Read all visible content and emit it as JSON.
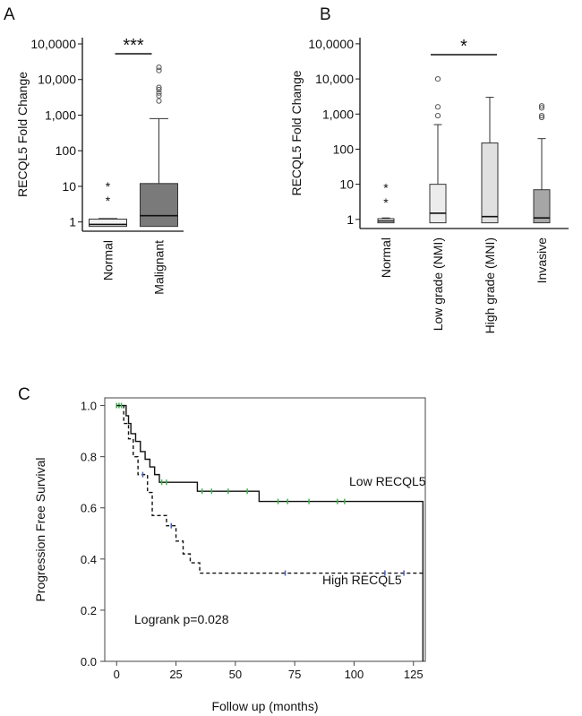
{
  "chart_data": [
    {
      "panel": "A",
      "type": "box",
      "ylabel": "RECQL5 Fold Change",
      "yscale": "log",
      "yticks": [
        {
          "value": 1,
          "label": "1"
        },
        {
          "value": 10,
          "label": "10"
        },
        {
          "value": 100,
          "label": "100"
        },
        {
          "value": 1000,
          "label": "1,000"
        },
        {
          "value": 10000,
          "label": "10,000"
        },
        {
          "value": 100000,
          "label": "10,0000"
        }
      ],
      "ylim": [
        0.55,
        150000
      ],
      "categories": [
        "Normal",
        "Malignant"
      ],
      "boxes": [
        {
          "category": "Normal",
          "fill": "#f2f2f2",
          "whisker_low": 0.75,
          "q1": 0.75,
          "median": 0.85,
          "q3": 1.2,
          "whisker_high": 1.25,
          "outliers": [],
          "extremes": [
            4,
            10
          ]
        },
        {
          "category": "Malignant",
          "fill": "#7a7a7a",
          "whisker_low": 0.75,
          "q1": 0.75,
          "median": 1.5,
          "q3": 12,
          "whisker_high": 800,
          "outliers": [
            2500,
            3500,
            4200,
            5200,
            6000,
            18000,
            22000
          ],
          "extremes": []
        }
      ],
      "significance": {
        "label": "***",
        "from": "Normal",
        "to": "Malignant"
      }
    },
    {
      "panel": "B",
      "type": "box",
      "ylabel": "RECQL5 Fold Change",
      "yscale": "log",
      "yticks": [
        {
          "value": 1,
          "label": "1"
        },
        {
          "value": 10,
          "label": "10"
        },
        {
          "value": 100,
          "label": "100"
        },
        {
          "value": 1000,
          "label": "1,000"
        },
        {
          "value": 10000,
          "label": "10,000"
        },
        {
          "value": 100000,
          "label": "10,0000"
        }
      ],
      "ylim": [
        0.55,
        150000
      ],
      "categories": [
        "Normal",
        "Low grade (NMI)",
        "High grade (MNI)",
        "Invasive"
      ],
      "boxes": [
        {
          "category": "Normal",
          "fill": "#f2f2f2",
          "whisker_low": 0.8,
          "q1": 0.8,
          "median": 0.9,
          "q3": 1.05,
          "whisker_high": 1.1,
          "outliers": [],
          "extremes": [
            3,
            8
          ]
        },
        {
          "category": "Low grade (NMI)",
          "fill": "#ececec",
          "whisker_low": 0.8,
          "q1": 0.8,
          "median": 1.5,
          "q3": 10,
          "whisker_high": 500,
          "outliers": [
            900,
            1600,
            10000
          ],
          "extremes": []
        },
        {
          "category": "High grade (MNI)",
          "fill": "#e0e0e0",
          "whisker_low": 0.8,
          "q1": 0.8,
          "median": 1.2,
          "q3": 150,
          "whisker_high": 3000,
          "outliers": [],
          "extremes": []
        },
        {
          "category": "Invasive",
          "fill": "#a6a6a6",
          "whisker_low": 0.8,
          "q1": 0.8,
          "median": 1.1,
          "q3": 7,
          "whisker_high": 200,
          "outliers": [
            800,
            900,
            1500,
            1700
          ],
          "extremes": []
        }
      ],
      "significance": {
        "label": "*",
        "from": "Low grade (NMI)",
        "to": "High grade (MNI)"
      }
    },
    {
      "panel": "C",
      "type": "line",
      "subtype": "kaplan-meier",
      "xlabel": "Follow up (months)",
      "ylabel": "Progression Free Survival",
      "xlim": [
        -5,
        130
      ],
      "ylim": [
        0,
        1.03
      ],
      "xticks": [
        0,
        25,
        50,
        75,
        100,
        125
      ],
      "yticks": [
        {
          "value": 0,
          "label": "0.0"
        },
        {
          "value": 0.2,
          "label": "0.2"
        },
        {
          "value": 0.4,
          "label": "0.4"
        },
        {
          "value": 0.6,
          "label": "0.6"
        },
        {
          "value": 0.8,
          "label": "0.8"
        },
        {
          "value": 1.0,
          "label": "1.0"
        }
      ],
      "annotation": "Logrank p=0.028",
      "series": [
        {
          "name": "Low RECQL5",
          "style": "solid",
          "censor_color": "#3cb44b",
          "steps": [
            [
              0,
              1.0
            ],
            [
              4,
              0.96
            ],
            [
              5,
              0.93
            ],
            [
              6,
              0.89
            ],
            [
              8,
              0.86
            ],
            [
              10,
              0.82
            ],
            [
              12,
              0.79
            ],
            [
              14,
              0.76
            ],
            [
              16,
              0.73
            ],
            [
              18,
              0.7
            ],
            [
              34,
              0.665
            ],
            [
              60,
              0.625
            ],
            [
              129,
              0.625
            ],
            [
              129,
              0.0
            ]
          ],
          "censored": [
            [
              0,
              1.0
            ],
            [
              1,
              1.0
            ],
            [
              2,
              1.0
            ],
            [
              19,
              0.7
            ],
            [
              21,
              0.7
            ],
            [
              36,
              0.665
            ],
            [
              40,
              0.665
            ],
            [
              47,
              0.665
            ],
            [
              55,
              0.665
            ],
            [
              68,
              0.625
            ],
            [
              72,
              0.625
            ],
            [
              81,
              0.625
            ],
            [
              93,
              0.625
            ],
            [
              96,
              0.625
            ]
          ]
        },
        {
          "name": "High RECQL5",
          "style": "dashed",
          "censor_color": "#4b5fb4",
          "steps": [
            [
              0,
              1.0
            ],
            [
              3,
              0.93
            ],
            [
              5,
              0.87
            ],
            [
              7,
              0.8
            ],
            [
              9,
              0.73
            ],
            [
              13,
              0.66
            ],
            [
              15,
              0.57
            ],
            [
              21,
              0.53
            ],
            [
              25,
              0.47
            ],
            [
              28,
              0.42
            ],
            [
              31,
              0.385
            ],
            [
              35,
              0.345
            ],
            [
              129,
              0.345
            ]
          ],
          "censored": [
            [
              11,
              0.73
            ],
            [
              23,
              0.53
            ],
            [
              71,
              0.345
            ],
            [
              113,
              0.345
            ],
            [
              121,
              0.345
            ]
          ]
        }
      ]
    }
  ],
  "panels": {
    "a": "A",
    "b": "B",
    "c": "C"
  }
}
